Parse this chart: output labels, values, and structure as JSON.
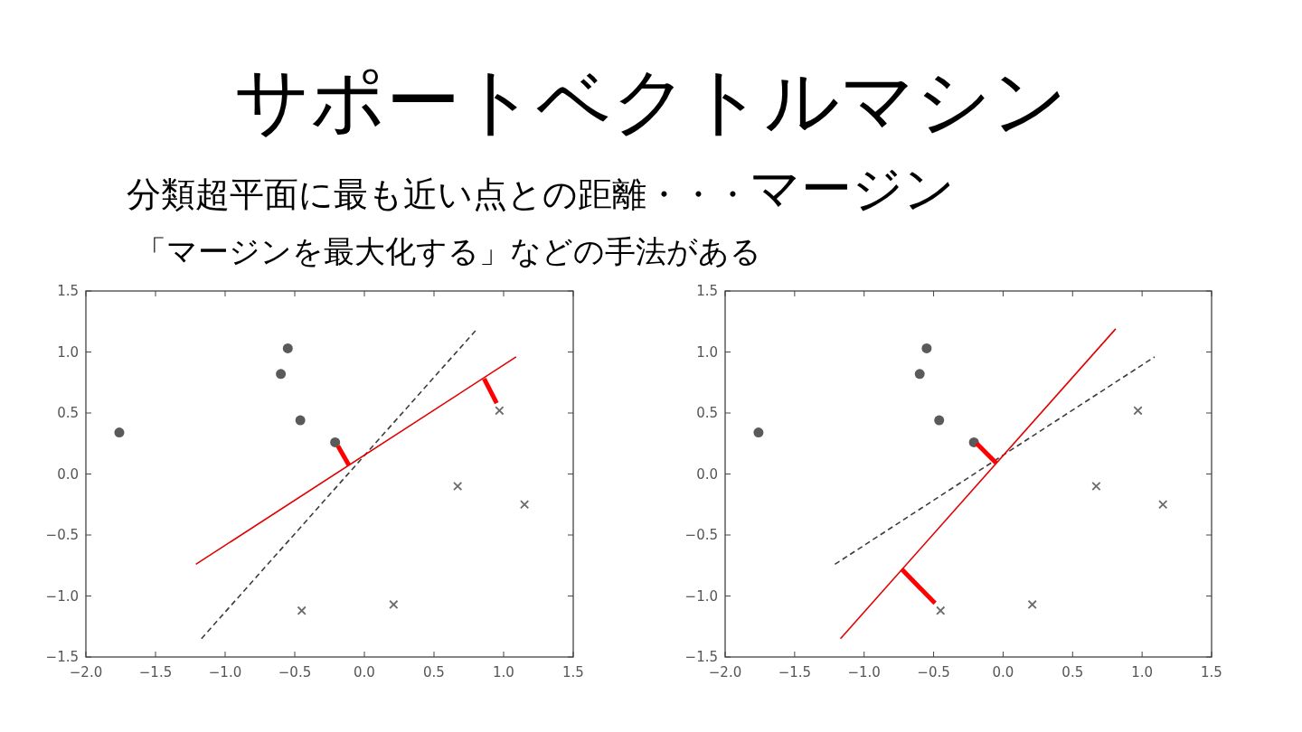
{
  "chart_data": [
    {
      "type": "other",
      "title": "サポートベクトルマシン",
      "annotations": [
        "分類超平面に最も近い点との距離・・・",
        "マージン",
        "「マージンを最大化する」などの手法がある"
      ]
    },
    {
      "type": "scatter",
      "xlim": [
        -2,
        1.5
      ],
      "ylim": [
        -1.5,
        1.5
      ],
      "xticks": [
        {
          "value": -2,
          "label": "−2.0"
        },
        {
          "value": -1.5,
          "label": "−1.5"
        },
        {
          "value": -1,
          "label": "−1.0"
        },
        {
          "value": -0.5,
          "label": "−0.5"
        },
        {
          "value": 0,
          "label": "0.0"
        },
        {
          "value": 0.5,
          "label": "0.5"
        },
        {
          "value": 1,
          "label": "1.0"
        },
        {
          "value": 1.5,
          "label": "1.5"
        }
      ],
      "yticks": [
        {
          "value": -1.5,
          "label": "−1.5"
        },
        {
          "value": -1,
          "label": "−1.0"
        },
        {
          "value": -0.5,
          "label": "−0.5"
        },
        {
          "value": 0,
          "label": "0.0"
        },
        {
          "value": 0.5,
          "label": "0.5"
        },
        {
          "value": 1,
          "label": "1.0"
        },
        {
          "value": 1.5,
          "label": "1.5"
        }
      ],
      "series": [
        {
          "type": "scatter",
          "marker": "circle",
          "color": "#5a5a5a",
          "x": [
            -1.76,
            -0.6,
            -0.55,
            -0.46,
            -0.21
          ],
          "values": [
            0.34,
            0.82,
            1.03,
            0.44,
            0.26
          ]
        },
        {
          "type": "scatter",
          "marker": "cross",
          "color": "#6b6b6b",
          "x": [
            0.97,
            0.67,
            1.15,
            -0.45,
            0.21
          ],
          "values": [
            0.52,
            -0.1,
            -0.25,
            -1.12,
            -1.07
          ]
        },
        {
          "type": "line",
          "line_style": "dashed",
          "color": "#3c3c3c",
          "x": [
            -1.17,
            0.81
          ],
          "values": [
            -1.35,
            1.19
          ]
        },
        {
          "type": "line",
          "line_style": "solid",
          "color": "#e00000",
          "x": [
            -1.21,
            1.09
          ],
          "values": [
            -0.74,
            0.96
          ]
        },
        {
          "type": "line",
          "line_style": "solid",
          "color": "#ff0000",
          "x": [
            -0.19,
            -0.11
          ],
          "values": [
            0.23,
            0.07
          ]
        },
        {
          "type": "line",
          "line_style": "solid",
          "color": "#ff0000",
          "x": [
            0.86,
            0.95
          ],
          "values": [
            0.78,
            0.58
          ]
        }
      ]
    },
    {
      "type": "scatter",
      "xlim": [
        -2,
        1.5
      ],
      "ylim": [
        -1.5,
        1.5
      ],
      "xticks": [
        {
          "value": -2,
          "label": "−2.0"
        },
        {
          "value": -1.5,
          "label": "−1.5"
        },
        {
          "value": -1,
          "label": "−1.0"
        },
        {
          "value": -0.5,
          "label": "−0.5"
        },
        {
          "value": 0,
          "label": "0.0"
        },
        {
          "value": 0.5,
          "label": "0.5"
        },
        {
          "value": 1,
          "label": "1.0"
        },
        {
          "value": 1.5,
          "label": "1.5"
        }
      ],
      "yticks": [
        {
          "value": -1.5,
          "label": "−1.5"
        },
        {
          "value": -1,
          "label": "−1.0"
        },
        {
          "value": -0.5,
          "label": "−0.5"
        },
        {
          "value": 0,
          "label": "0.0"
        },
        {
          "value": 0.5,
          "label": "0.5"
        },
        {
          "value": 1,
          "label": "1.0"
        },
        {
          "value": 1.5,
          "label": "1.5"
        }
      ],
      "series": [
        {
          "type": "scatter",
          "marker": "circle",
          "color": "#5a5a5a",
          "x": [
            -1.76,
            -0.6,
            -0.55,
            -0.46,
            -0.21
          ],
          "values": [
            0.34,
            0.82,
            1.03,
            0.44,
            0.26
          ]
        },
        {
          "type": "scatter",
          "marker": "cross",
          "color": "#6b6b6b",
          "x": [
            0.97,
            0.67,
            1.15,
            -0.45,
            0.21
          ],
          "values": [
            0.52,
            -0.1,
            -0.25,
            -1.12,
            -1.07
          ]
        },
        {
          "type": "line",
          "line_style": "dashed",
          "color": "#3c3c3c",
          "x": [
            -1.21,
            1.09
          ],
          "values": [
            -0.74,
            0.96
          ]
        },
        {
          "type": "line",
          "line_style": "solid",
          "color": "#e00000",
          "x": [
            -1.17,
            0.81
          ],
          "values": [
            -1.35,
            1.19
          ]
        },
        {
          "type": "line",
          "line_style": "solid",
          "color": "#ff0000",
          "x": [
            -0.19,
            -0.05
          ],
          "values": [
            0.25,
            0.09
          ]
        },
        {
          "type": "line",
          "line_style": "solid",
          "color": "#ff0000",
          "x": [
            -0.73,
            -0.49
          ],
          "values": [
            -0.78,
            -1.06
          ]
        }
      ]
    }
  ]
}
